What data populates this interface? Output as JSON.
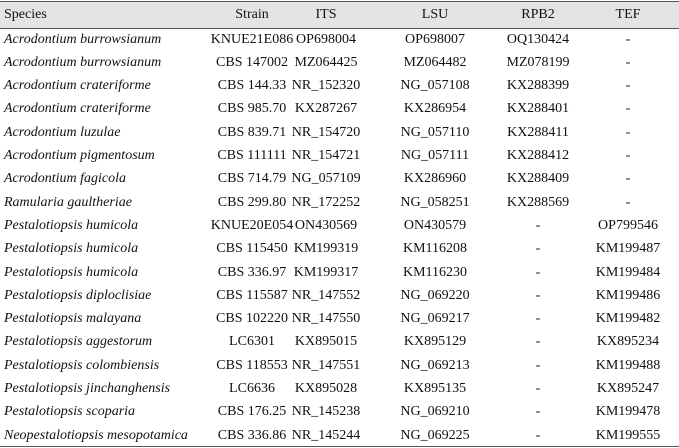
{
  "table": {
    "header": [
      "Species",
      "Strain",
      "ITS",
      "LSU",
      "RPB2",
      "TEF"
    ],
    "rows": [
      [
        "Acrodontium burrowsianum",
        "KNUE21E086",
        "OP698004",
        "OP698007",
        "OQ130424",
        "-"
      ],
      [
        "Acrodontium burrowsianum",
        "CBS 147002",
        "MZ064425",
        "MZ064482",
        "MZ078199",
        "-"
      ],
      [
        "Acrodontium crateriforme",
        "CBS 144.33",
        "NR_152320",
        "NG_057108",
        "KX288399",
        "-"
      ],
      [
        "Acrodontium crateriforme",
        "CBS 985.70",
        "KX287267",
        "KX286954",
        "KX288401",
        "-"
      ],
      [
        "Acrodontium luzulae",
        "CBS 839.71",
        "NR_154720",
        "NG_057110",
        "KX288411",
        "-"
      ],
      [
        "Acrodontium pigmentosum",
        "CBS 111111",
        "NR_154721",
        "NG_057111",
        "KX288412",
        "-"
      ],
      [
        "Acrodontium fagicola",
        "CBS 714.79",
        "NG_057109",
        "KX286960",
        "KX288409",
        "-"
      ],
      [
        "Ramularia gaultheriae",
        "CBS 299.80",
        "NR_172252",
        "NG_058251",
        "KX288569",
        "-"
      ],
      [
        "Pestalotiopsis humicola",
        "KNUE20E054",
        "ON430569",
        "ON430579",
        "-",
        "OP799546"
      ],
      [
        "Pestalotiopsis humicola",
        "CBS 115450",
        "KM199319",
        "KM116208",
        "-",
        "KM199487"
      ],
      [
        "Pestalotiopsis humicola",
        "CBS 336.97",
        "KM199317",
        "KM116230",
        "-",
        "KM199484"
      ],
      [
        "Pestalotiopsis diploclisiae",
        "CBS 115587",
        "NR_147552",
        "NG_069220",
        "-",
        "KM199486"
      ],
      [
        "Pestalotiopsis malayana",
        "CBS 102220",
        "NR_147550",
        "NG_069217",
        "-",
        "KM199482"
      ],
      [
        "Pestalotiopsis aggestorum",
        "LC6301",
        "KX895015",
        "KX895129",
        "-",
        "KX895234"
      ],
      [
        "Pestalotiopsis colombiensis",
        "CBS 118553",
        "NR_147551",
        "NG_069213",
        "-",
        "KM199488"
      ],
      [
        "Pestalotiopsis jinchanghensis",
        "LC6636",
        "KX895028",
        "KX895135",
        "-",
        "KX895247"
      ],
      [
        "Pestalotiopsis scoparia",
        "CBS 176.25",
        "NR_145238",
        "NG_069210",
        "-",
        "KM199478"
      ],
      [
        "Neopestalotiopsis mesopotamica",
        "CBS 336.86",
        "NR_145244",
        "NG_069225",
        "-",
        "KM199555"
      ]
    ]
  }
}
